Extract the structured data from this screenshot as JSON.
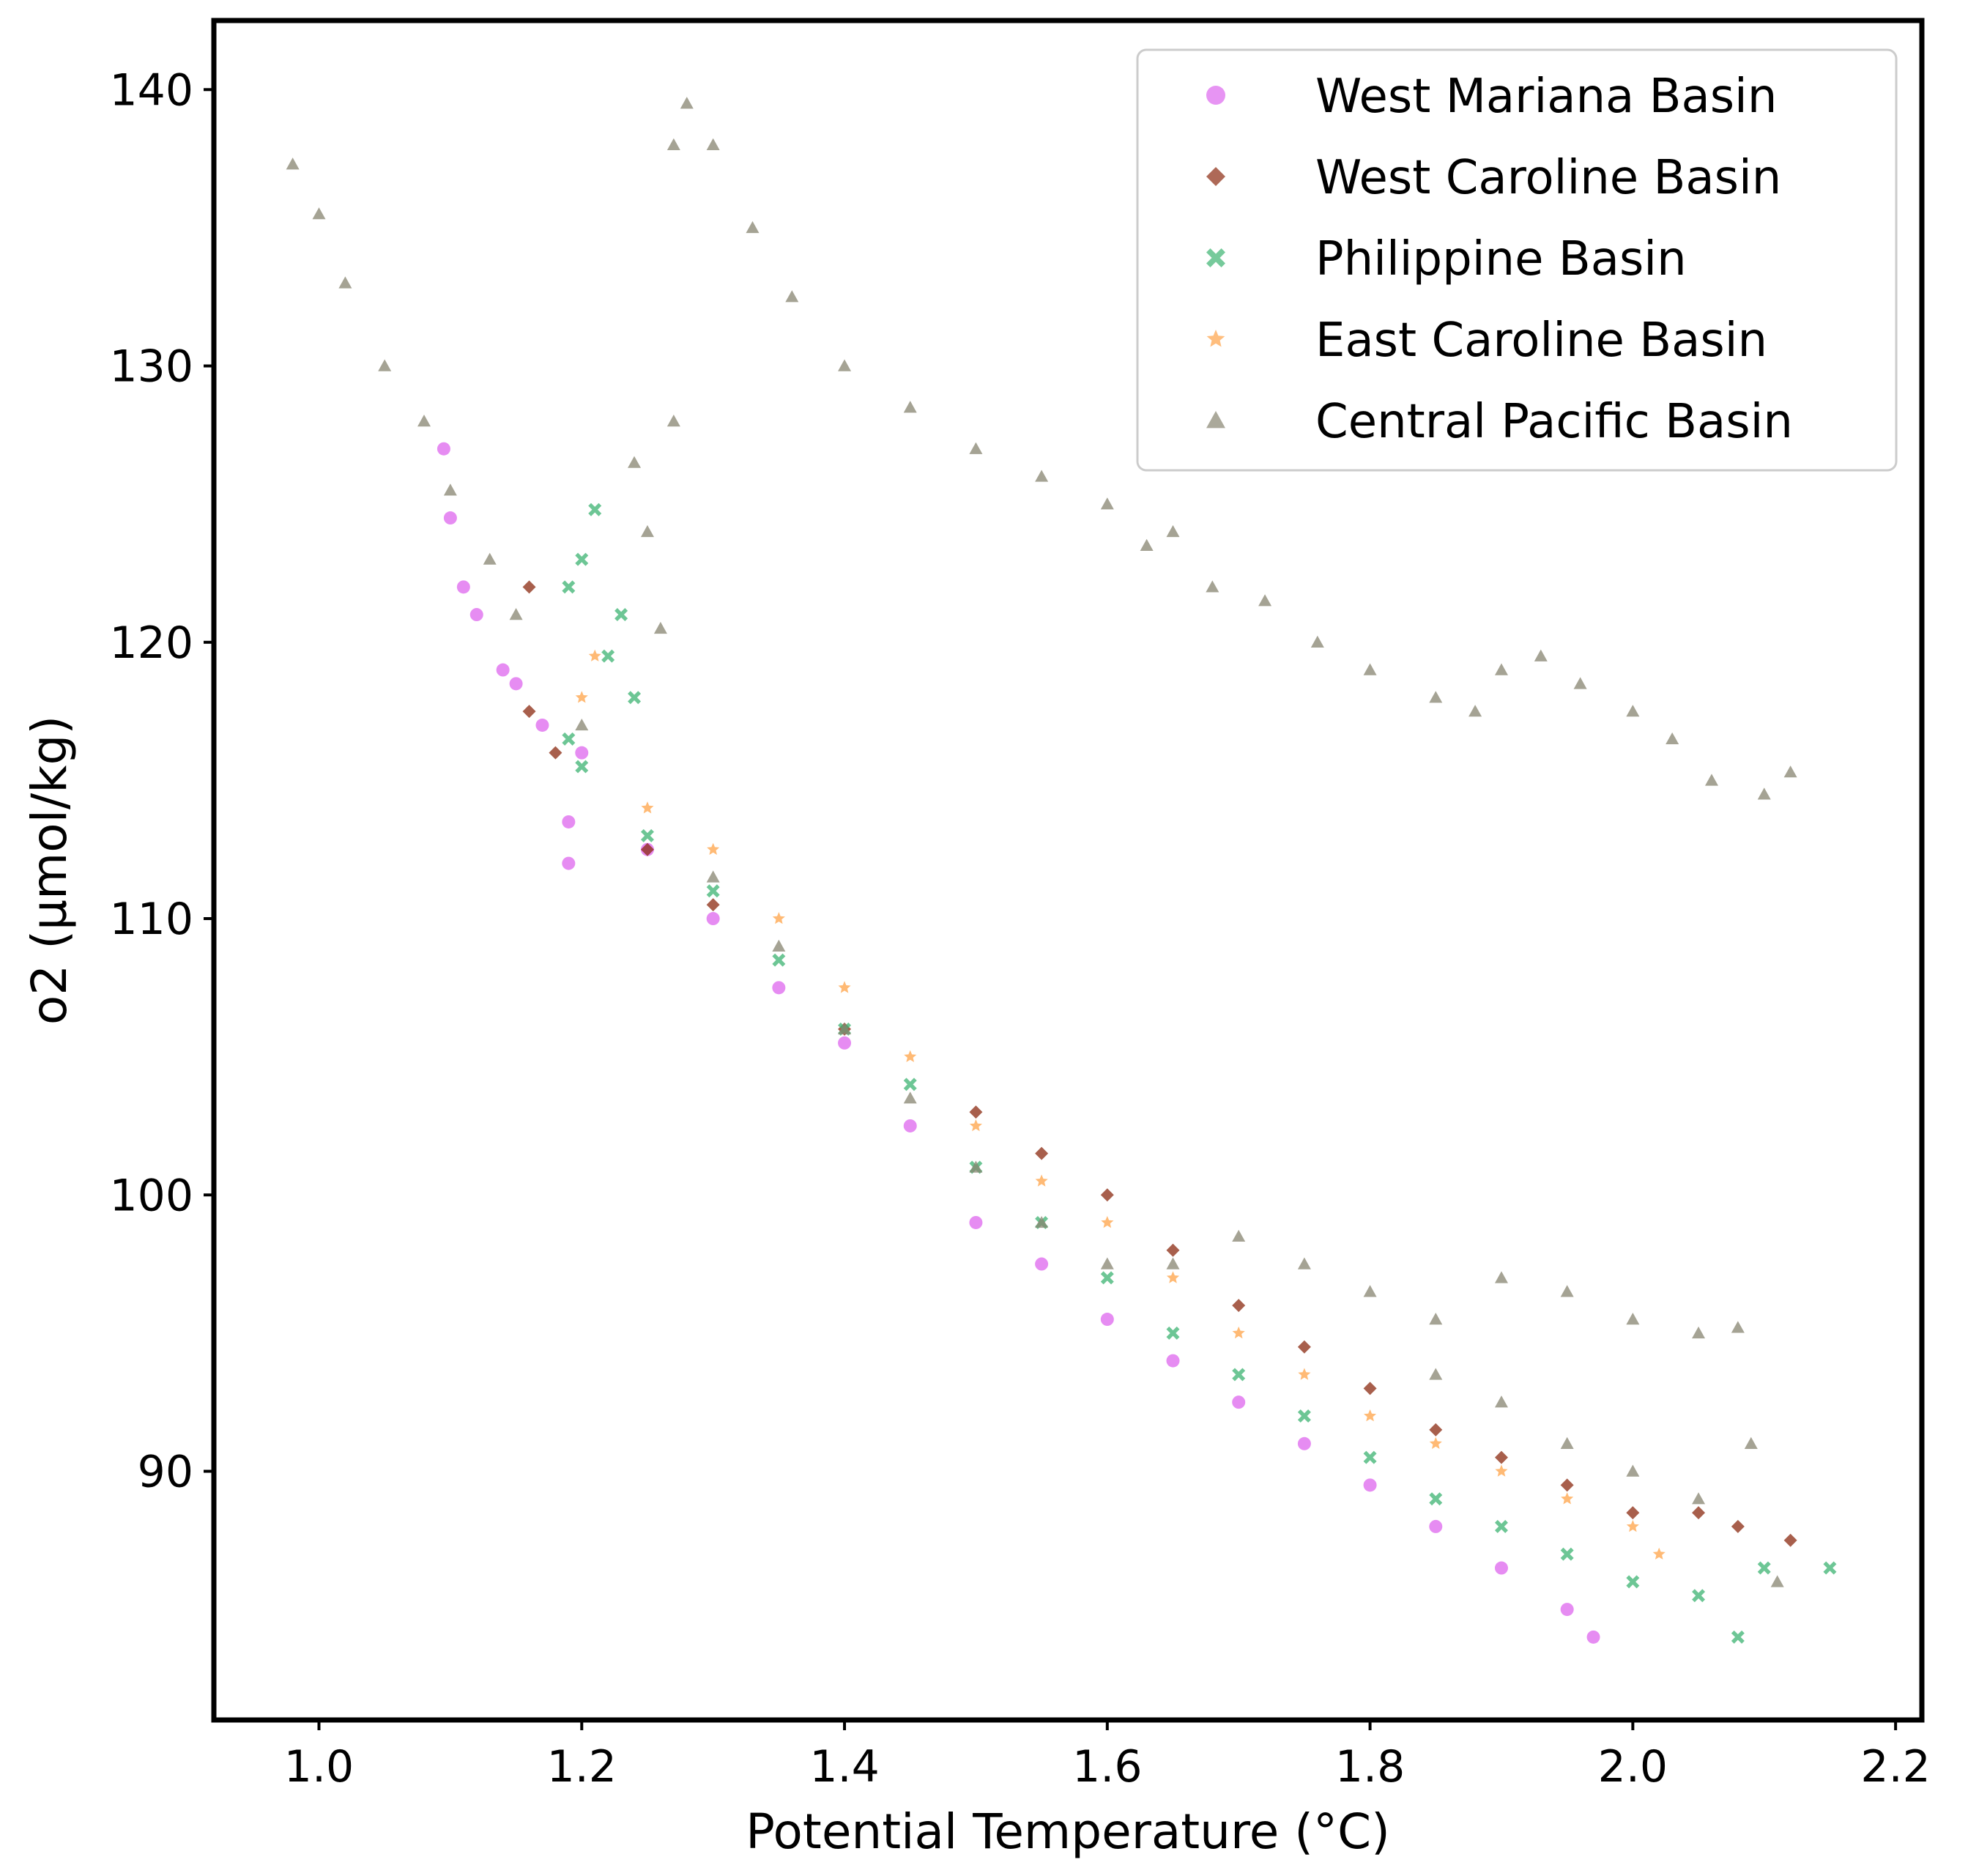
{
  "chart_data": {
    "type": "scatter",
    "title": "",
    "xlabel": "Potential Temperature (°C)",
    "ylabel": "o2 (µmol/kg)",
    "xlim": [
      0.92,
      2.22
    ],
    "ylim": [
      81,
      142.5
    ],
    "xticks": [
      {
        "value": 1.0,
        "label": "1.0"
      },
      {
        "value": 1.2,
        "label": "1.2"
      },
      {
        "value": 1.4,
        "label": "1.4"
      },
      {
        "value": 1.6,
        "label": "1.6"
      },
      {
        "value": 1.8,
        "label": "1.8"
      },
      {
        "value": 2.0,
        "label": "2.0"
      },
      {
        "value": 2.2,
        "label": "2.2"
      }
    ],
    "yticks": [
      {
        "value": 90,
        "label": "90"
      },
      {
        "value": 100,
        "label": "100"
      },
      {
        "value": 110,
        "label": "110"
      },
      {
        "value": 120,
        "label": "120"
      },
      {
        "value": 130,
        "label": "130"
      },
      {
        "value": 140,
        "label": "140"
      }
    ],
    "grid": false,
    "legend_position": "top-right",
    "series": [
      {
        "name": "West Mariana Basin",
        "marker": "circle",
        "color": "#dd66ee",
        "points": [
          [
            1.095,
            127.0
          ],
          [
            1.1,
            124.5
          ],
          [
            1.11,
            122.0
          ],
          [
            1.12,
            121.0
          ],
          [
            1.14,
            119.0
          ],
          [
            1.15,
            118.5
          ],
          [
            1.17,
            117.0
          ],
          [
            1.19,
            113.5
          ],
          [
            1.19,
            112.0
          ],
          [
            1.2,
            116.0
          ],
          [
            1.25,
            112.5
          ],
          [
            1.3,
            110.0
          ],
          [
            1.35,
            107.5
          ],
          [
            1.4,
            105.5
          ],
          [
            1.45,
            102.5
          ],
          [
            1.5,
            99.0
          ],
          [
            1.55,
            97.5
          ],
          [
            1.6,
            95.5
          ],
          [
            1.65,
            94.0
          ],
          [
            1.7,
            92.5
          ],
          [
            1.75,
            91.0
          ],
          [
            1.8,
            89.5
          ],
          [
            1.85,
            88.0
          ],
          [
            1.9,
            86.5
          ],
          [
            1.95,
            85.0
          ],
          [
            1.97,
            84.0
          ]
        ]
      },
      {
        "name": "West Caroline Basin",
        "marker": "diamond",
        "color": "#8b2a10",
        "points": [
          [
            1.16,
            122.0
          ],
          [
            1.16,
            117.5
          ],
          [
            1.18,
            116.0
          ],
          [
            1.25,
            112.5
          ],
          [
            1.3,
            110.5
          ],
          [
            1.4,
            106.0
          ],
          [
            1.5,
            103.0
          ],
          [
            1.55,
            101.5
          ],
          [
            1.6,
            100.0
          ],
          [
            1.65,
            98.0
          ],
          [
            1.7,
            96.0
          ],
          [
            1.75,
            94.5
          ],
          [
            1.8,
            93.0
          ],
          [
            1.85,
            91.5
          ],
          [
            1.9,
            90.5
          ],
          [
            1.95,
            89.5
          ],
          [
            2.0,
            88.5
          ],
          [
            2.05,
            88.5
          ],
          [
            2.08,
            88.0
          ],
          [
            2.12,
            87.5
          ]
        ]
      },
      {
        "name": "Philippine Basin",
        "marker": "x",
        "color": "#3cb371",
        "points": [
          [
            1.19,
            122.0
          ],
          [
            1.2,
            123.0
          ],
          [
            1.21,
            124.8
          ],
          [
            1.22,
            119.5
          ],
          [
            1.23,
            121.0
          ],
          [
            1.24,
            118.0
          ],
          [
            1.19,
            116.5
          ],
          [
            1.2,
            115.5
          ],
          [
            1.25,
            113.0
          ],
          [
            1.3,
            111.0
          ],
          [
            1.35,
            108.5
          ],
          [
            1.4,
            106.0
          ],
          [
            1.45,
            104.0
          ],
          [
            1.5,
            101.0
          ],
          [
            1.55,
            99.0
          ],
          [
            1.6,
            97.0
          ],
          [
            1.65,
            95.0
          ],
          [
            1.7,
            93.5
          ],
          [
            1.75,
            92.0
          ],
          [
            1.8,
            90.5
          ],
          [
            1.85,
            89.0
          ],
          [
            1.9,
            88.0
          ],
          [
            1.95,
            87.0
          ],
          [
            2.0,
            86.0
          ],
          [
            2.05,
            85.5
          ],
          [
            2.08,
            84.0
          ],
          [
            2.1,
            86.5
          ],
          [
            2.15,
            86.5
          ]
        ]
      },
      {
        "name": "East Caroline Basin",
        "marker": "star",
        "color": "#ffa347",
        "points": [
          [
            1.2,
            118.0
          ],
          [
            1.21,
            119.5
          ],
          [
            1.25,
            114.0
          ],
          [
            1.3,
            112.5
          ],
          [
            1.35,
            110.0
          ],
          [
            1.4,
            107.5
          ],
          [
            1.45,
            105.0
          ],
          [
            1.5,
            102.5
          ],
          [
            1.55,
            100.5
          ],
          [
            1.6,
            99.0
          ],
          [
            1.65,
            97.0
          ],
          [
            1.7,
            95.0
          ],
          [
            1.75,
            93.5
          ],
          [
            1.8,
            92.0
          ],
          [
            1.85,
            91.0
          ],
          [
            1.9,
            90.0
          ],
          [
            1.95,
            89.0
          ],
          [
            2.0,
            88.0
          ],
          [
            2.02,
            87.0
          ]
        ]
      },
      {
        "name": "Central Pacific Basin",
        "marker": "triangle",
        "color": "#878470",
        "points": [
          [
            0.98,
            137.3
          ],
          [
            1.0,
            135.5
          ],
          [
            1.02,
            133.0
          ],
          [
            1.05,
            130.0
          ],
          [
            1.08,
            128.0
          ],
          [
            1.1,
            125.5
          ],
          [
            1.13,
            123.0
          ],
          [
            1.15,
            121.0
          ],
          [
            1.2,
            117.0
          ],
          [
            1.24,
            126.5
          ],
          [
            1.25,
            124.0
          ],
          [
            1.26,
            120.5
          ],
          [
            1.27,
            128.0
          ],
          [
            1.27,
            138.0
          ],
          [
            1.28,
            139.5
          ],
          [
            1.3,
            138.0
          ],
          [
            1.33,
            135.0
          ],
          [
            1.36,
            132.5
          ],
          [
            1.4,
            130.0
          ],
          [
            1.45,
            128.5
          ],
          [
            1.5,
            127.0
          ],
          [
            1.55,
            126.0
          ],
          [
            1.6,
            125.0
          ],
          [
            1.63,
            123.5
          ],
          [
            1.65,
            124.0
          ],
          [
            1.68,
            122.0
          ],
          [
            1.72,
            121.5
          ],
          [
            1.76,
            120.0
          ],
          [
            1.8,
            119.0
          ],
          [
            1.85,
            118.0
          ],
          [
            1.88,
            117.5
          ],
          [
            1.9,
            119.0
          ],
          [
            1.93,
            119.5
          ],
          [
            1.96,
            118.5
          ],
          [
            2.0,
            117.5
          ],
          [
            2.03,
            116.5
          ],
          [
            2.06,
            115.0
          ],
          [
            2.1,
            114.5
          ],
          [
            2.12,
            115.3
          ],
          [
            1.3,
            111.5
          ],
          [
            1.35,
            109.0
          ],
          [
            1.4,
            106.0
          ],
          [
            1.45,
            103.5
          ],
          [
            1.5,
            101.0
          ],
          [
            1.55,
            99.0
          ],
          [
            1.6,
            97.5
          ],
          [
            1.65,
            97.5
          ],
          [
            1.7,
            98.5
          ],
          [
            1.75,
            97.5
          ],
          [
            1.8,
            96.5
          ],
          [
            1.85,
            95.5
          ],
          [
            1.9,
            97.0
          ],
          [
            1.95,
            96.5
          ],
          [
            2.0,
            95.5
          ],
          [
            2.05,
            95.0
          ],
          [
            2.08,
            95.2
          ],
          [
            1.85,
            93.5
          ],
          [
            1.9,
            92.5
          ],
          [
            1.95,
            91.0
          ],
          [
            2.0,
            90.0
          ],
          [
            2.05,
            89.0
          ],
          [
            2.09,
            91.0
          ],
          [
            2.11,
            86.0
          ]
        ]
      }
    ]
  }
}
